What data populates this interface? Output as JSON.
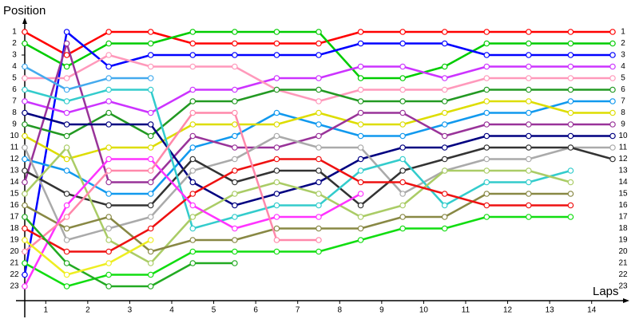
{
  "chart_data": {
    "type": "line",
    "y_label": "Position",
    "x_label": "Laps",
    "x": [
      0,
      1,
      2,
      3,
      4,
      5,
      6,
      7,
      8,
      9,
      10,
      11,
      12,
      13,
      14
    ],
    "xlim": [
      0,
      14
    ],
    "xticks": [
      {
        "value": 0.5,
        "label": "1"
      },
      {
        "value": 1.5,
        "label": "2"
      },
      {
        "value": 2.5,
        "label": "3"
      },
      {
        "value": 3.5,
        "label": "4"
      },
      {
        "value": 4.5,
        "label": "5"
      },
      {
        "value": 5.5,
        "label": "6"
      },
      {
        "value": 6.5,
        "label": "7"
      },
      {
        "value": 7.5,
        "label": "8"
      },
      {
        "value": 8.5,
        "label": "9"
      },
      {
        "value": 9.5,
        "label": "10"
      },
      {
        "value": 10.5,
        "label": "11"
      },
      {
        "value": 11.5,
        "label": "12"
      },
      {
        "value": 12.5,
        "label": "13"
      },
      {
        "value": 13.5,
        "label": "14"
      }
    ],
    "ylim": [
      1,
      23
    ],
    "y_inverted": true,
    "yticks": [
      1,
      2,
      3,
      4,
      5,
      6,
      7,
      8,
      9,
      10,
      11,
      12,
      13,
      14,
      15,
      16,
      17,
      18,
      19,
      20,
      21,
      22,
      23
    ],
    "grid": false,
    "series": [
      {
        "color": "#ff0000",
        "values": [
          1,
          3,
          1,
          1,
          2,
          2,
          2,
          2,
          1,
          1,
          1,
          1,
          1,
          1,
          1
        ]
      },
      {
        "color": "#00cc00",
        "values": [
          2,
          4,
          2,
          2,
          1,
          1,
          1,
          1,
          5,
          5,
          4,
          2,
          2,
          2,
          2
        ]
      },
      {
        "color": "#0000ff",
        "values": [
          22,
          1,
          4,
          3,
          3,
          3,
          3,
          3,
          2,
          2,
          2,
          3,
          3,
          3,
          3
        ]
      },
      {
        "color": "#cc33ff",
        "values": [
          7,
          8,
          7,
          8,
          6,
          6,
          5,
          5,
          4,
          4,
          5,
          4,
          4,
          4,
          4
        ]
      },
      {
        "color": "#ff99bb",
        "values": [
          5,
          5,
          3,
          4,
          4,
          4,
          6,
          7,
          6,
          6,
          6,
          5,
          5,
          5,
          5
        ]
      },
      {
        "color": "#229922",
        "values": [
          9,
          10,
          8,
          10,
          7,
          7,
          6,
          6,
          7,
          7,
          7,
          6,
          6,
          6,
          6
        ]
      },
      {
        "color": "#1199ee",
        "values": [
          12,
          13,
          15,
          15,
          11,
          10,
          8,
          9,
          10,
          10,
          9,
          8,
          8,
          7,
          7
        ]
      },
      {
        "color": "#dddd00",
        "values": [
          10,
          12,
          11,
          11,
          9,
          9,
          9,
          8,
          9,
          9,
          8,
          7,
          7,
          8,
          8
        ]
      },
      {
        "color": "#993399",
        "values": [
          14,
          2,
          14,
          14,
          10,
          11,
          11,
          10,
          8,
          8,
          10,
          9,
          9,
          9,
          9
        ]
      },
      {
        "color": "#000080",
        "values": [
          8,
          9,
          9,
          9,
          14,
          16,
          15,
          14,
          12,
          11,
          11,
          10,
          10,
          10,
          10
        ]
      },
      {
        "color": "#aaaaaa",
        "values": [
          11,
          19,
          18,
          17,
          13,
          12,
          10,
          11,
          11,
          15,
          13,
          12,
          12,
          11,
          11
        ]
      },
      {
        "color": "#333333",
        "values": [
          13,
          15,
          16,
          16,
          12,
          14,
          13,
          13,
          16,
          13,
          12,
          11,
          11,
          11,
          12
        ]
      },
      {
        "color": "#33cccc",
        "values": [
          6,
          7,
          6,
          6,
          18,
          17,
          16,
          16,
          13,
          12,
          16,
          14,
          14,
          13,
          null
        ]
      },
      {
        "color": "#aacc66",
        "values": [
          15,
          11,
          19,
          21,
          17,
          15,
          14,
          15,
          17,
          16,
          13,
          13,
          13,
          14,
          null
        ]
      },
      {
        "color": "#888844",
        "values": [
          16,
          18,
          17,
          20,
          19,
          19,
          18,
          18,
          18,
          17,
          17,
          15,
          15,
          15,
          null
        ]
      },
      {
        "color": "#ee1111",
        "values": [
          18,
          20,
          20,
          18,
          15,
          13,
          12,
          12,
          14,
          14,
          15,
          16,
          16,
          16,
          null
        ]
      },
      {
        "color": "#11dd11",
        "values": [
          21,
          23,
          22,
          22,
          20,
          20,
          20,
          20,
          19,
          18,
          18,
          17,
          17,
          17,
          null
        ]
      },
      {
        "color": "#ff33ff",
        "values": [
          23,
          16,
          12,
          12,
          16,
          18,
          17,
          17,
          15,
          null,
          null,
          null,
          null,
          null,
          null
        ]
      },
      {
        "color": "#ff88aa",
        "values": [
          20,
          17,
          13,
          13,
          8,
          8,
          19,
          19,
          null,
          null,
          null,
          null,
          null,
          null,
          null
        ]
      },
      {
        "color": "#22aa22",
        "values": [
          17,
          21,
          23,
          23,
          21,
          21,
          null,
          null,
          null,
          null,
          null,
          null,
          null,
          null,
          null
        ]
      },
      {
        "color": "#44aaee",
        "values": [
          4,
          6,
          5,
          5,
          null,
          null,
          null,
          null,
          null,
          null,
          null,
          null,
          null,
          null,
          null
        ]
      },
      {
        "color": "#eeee22",
        "values": [
          19,
          22,
          21,
          19,
          null,
          null,
          null,
          null,
          null,
          null,
          null,
          null,
          null,
          null,
          null
        ]
      }
    ]
  }
}
